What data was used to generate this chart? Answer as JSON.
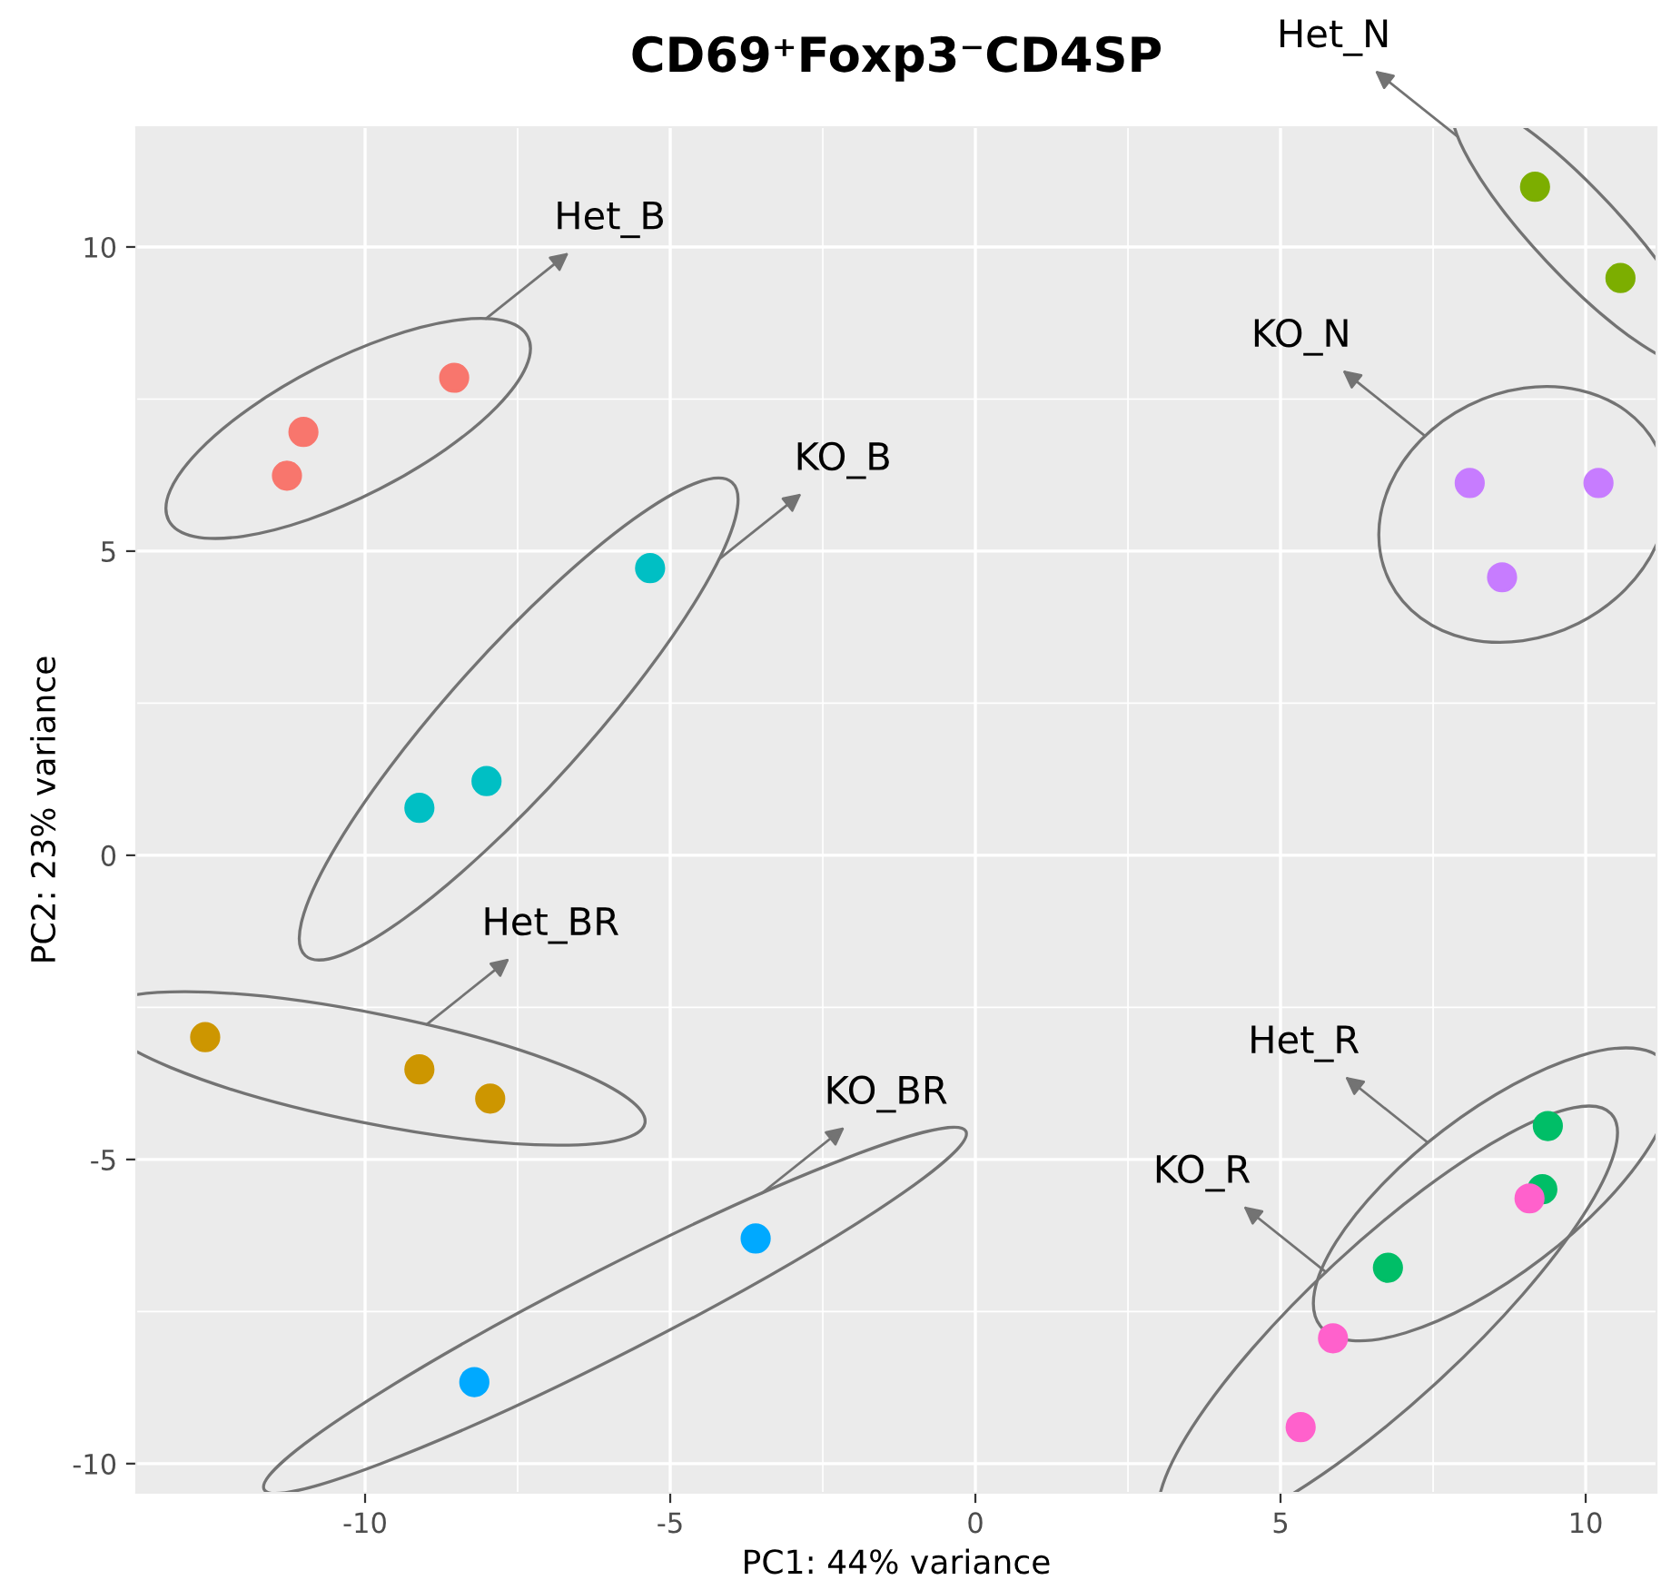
{
  "chart_data": {
    "type": "scatter",
    "title": "CD69⁺Foxp3⁻CD4SP",
    "xlabel": "PC1: 44% variance",
    "ylabel": "PC2: 23% variance",
    "xlim": [
      -13.75,
      11.16
    ],
    "ylim": [
      -10.48,
      11.97
    ],
    "xticks": [
      -10,
      -5,
      0,
      5,
      10
    ],
    "yticks": [
      -10,
      -5,
      0,
      5,
      10
    ],
    "grid": true,
    "marker": "circle",
    "series": [
      {
        "color": "#F8766D",
        "x": [
          -8.54,
          -11.01,
          -11.28
        ],
        "values": [
          7.85,
          6.96,
          6.24
        ]
      },
      {
        "color": "#00BFC4",
        "x": [
          -5.33,
          -8.01,
          -9.11
        ],
        "values": [
          4.72,
          1.22,
          0.78
        ]
      },
      {
        "color": "#CD9600",
        "x": [
          -12.62,
          -9.11,
          -7.95
        ],
        "values": [
          -2.99,
          -3.52,
          -4.0
        ]
      },
      {
        "color": "#00A9FF",
        "x": [
          -3.6,
          -8.21
        ],
        "values": [
          -6.3,
          -8.66
        ]
      },
      {
        "color": "#7CAE00",
        "x": [
          9.17,
          10.57
        ],
        "values": [
          10.99,
          9.49
        ]
      },
      {
        "color": "#C77CFF",
        "x": [
          8.1,
          10.21,
          8.63
        ],
        "values": [
          6.12,
          6.12,
          4.57
        ]
      },
      {
        "color": "#00BE67",
        "x": [
          9.38,
          9.29,
          6.76
        ],
        "values": [
          -4.45,
          -5.49,
          -6.78
        ]
      },
      {
        "color": "#FF61CC",
        "x": [
          9.08,
          5.86,
          5.33
        ],
        "values": [
          -5.64,
          -7.94,
          -9.4
        ]
      }
    ],
    "annotations": [
      "Het_B",
      "KO_B",
      "Het_BR",
      "KO_BR",
      "Het_N",
      "KO_N",
      "Het_R",
      "KO_R"
    ]
  }
}
